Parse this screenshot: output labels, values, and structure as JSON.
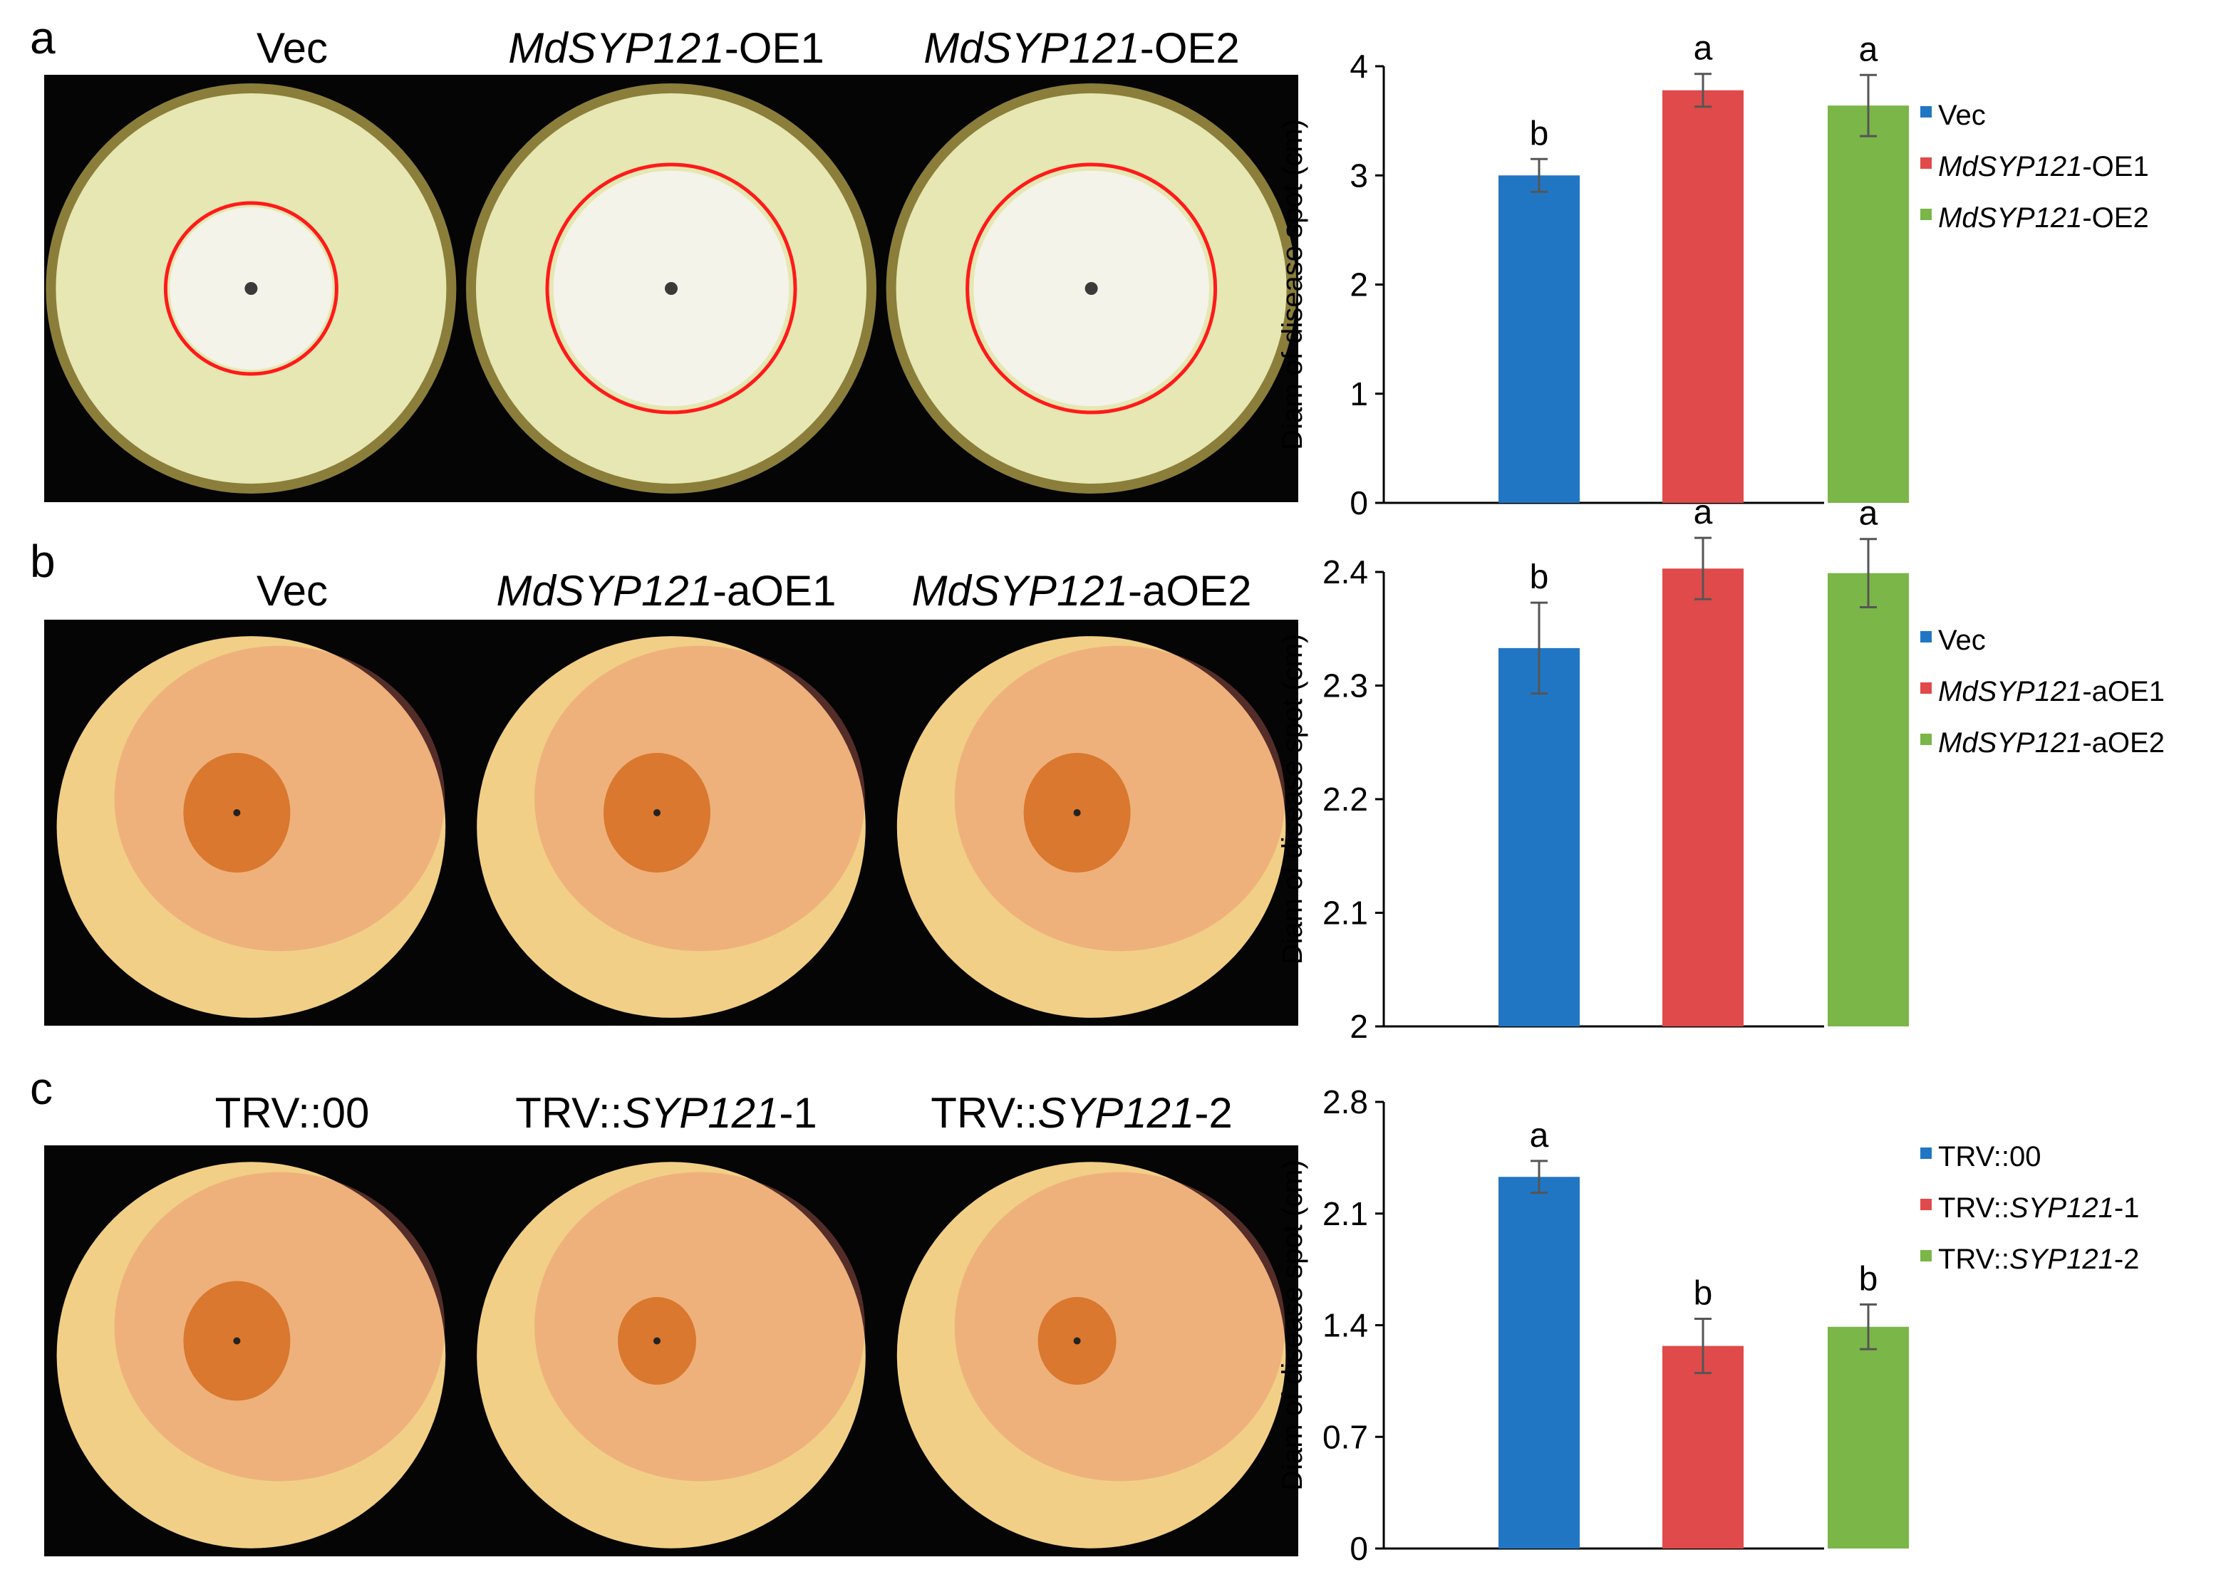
{
  "panels": [
    {
      "letter": "a",
      "photo_labels": [
        {
          "italic": "",
          "plain": "Vec"
        },
        {
          "italic": "MdSYP121",
          "plain": "-OE1"
        },
        {
          "italic": "MdSYP121",
          "plain": "-OE2"
        }
      ],
      "photo_type": "petri",
      "photo_colors": {
        "bg": "#050505",
        "medium": "#e6e7b2",
        "circle": "#ff1a1a"
      }
    },
    {
      "letter": "b",
      "photo_labels": [
        {
          "italic": "",
          "plain": "Vec"
        },
        {
          "italic": "MdSYP121",
          "plain": "-aOE1"
        },
        {
          "italic": "MdSYP121",
          "plain": "-aOE2"
        }
      ],
      "photo_type": "apple",
      "photo_colors": {
        "bg": "#050505",
        "apple": "#f2cf86",
        "blush": "#e8786a",
        "lesion": "#d9782e"
      }
    },
    {
      "letter": "c",
      "photo_labels": [
        {
          "italic": "",
          "plain": "TRV::00",
          "prefix": ""
        },
        {
          "italic": "SYP121",
          "plain": "-1",
          "prefix": "TRV::"
        },
        {
          "italic": "SYP121",
          "plain": "-2",
          "prefix": "TRV::"
        }
      ],
      "photo_type": "apple",
      "photo_colors": {
        "bg": "#050505",
        "apple": "#f2cf86",
        "blush": "#e8786a",
        "lesion": "#d9782e"
      }
    }
  ],
  "chart_data": [
    {
      "type": "bar",
      "ylabel": "Diam of disease spot (cm)",
      "ylim": [
        0,
        4
      ],
      "yticks": [
        "0",
        "1",
        "2",
        "3",
        "4"
      ],
      "categories": [
        "Vec",
        "MdSYP121-OE1",
        "MdSYP121-OE2"
      ],
      "values": [
        3.0,
        3.78,
        3.64
      ],
      "errors": [
        0.15,
        0.15,
        0.28
      ],
      "letters": [
        "b",
        "a",
        "a"
      ],
      "colors": [
        "#2176c4",
        "#e04a4a",
        "#7ab648"
      ],
      "legend": [
        {
          "italic": "",
          "plain": "Vec"
        },
        {
          "italic": "MdSYP121",
          "plain": "-OE1"
        },
        {
          "italic": "MdSYP121",
          "plain": "-OE2"
        }
      ]
    },
    {
      "type": "bar",
      "ylabel": "Diam of disease spot (cm)",
      "ylim": [
        2,
        2.45
      ],
      "yticks": [
        "2",
        "2.1",
        "2.2",
        "2.3",
        "2.4"
      ],
      "categories": [
        "Vec",
        "MdSYP121-aOE1",
        "MdSYP121-aOE2"
      ],
      "values": [
        2.333,
        2.403,
        2.399
      ],
      "errors": [
        0.04,
        0.027,
        0.03
      ],
      "letters": [
        "b",
        "a",
        "a"
      ],
      "colors": [
        "#2176c4",
        "#e04a4a",
        "#7ab648"
      ],
      "legend": [
        {
          "italic": "",
          "plain": "Vec"
        },
        {
          "italic": "MdSYP121",
          "plain": "-aOE1"
        },
        {
          "italic": "MdSYP121",
          "plain": "-aOE2"
        }
      ]
    },
    {
      "type": "bar",
      "ylabel": "Diam of disease spot (cm)",
      "ylim": [
        0,
        2.8
      ],
      "yticks": [
        "0",
        "0.7",
        "1.4",
        "2.1",
        "2.8"
      ],
      "categories": [
        "TRV::00",
        "TRV::SYP121-1",
        "TRV::SYP121-2"
      ],
      "values": [
        2.33,
        1.27,
        1.39
      ],
      "errors": [
        0.1,
        0.17,
        0.14
      ],
      "letters": [
        "a",
        "b",
        "b"
      ],
      "colors": [
        "#2176c4",
        "#e04a4a",
        "#7ab648"
      ],
      "legend": [
        {
          "prefix": "",
          "italic": "",
          "plain": "TRV::00"
        },
        {
          "prefix": "TRV::",
          "italic": "SYP121",
          "plain": "-1"
        },
        {
          "prefix": "TRV::",
          "italic": "SYP121",
          "plain": "-2"
        }
      ]
    }
  ]
}
